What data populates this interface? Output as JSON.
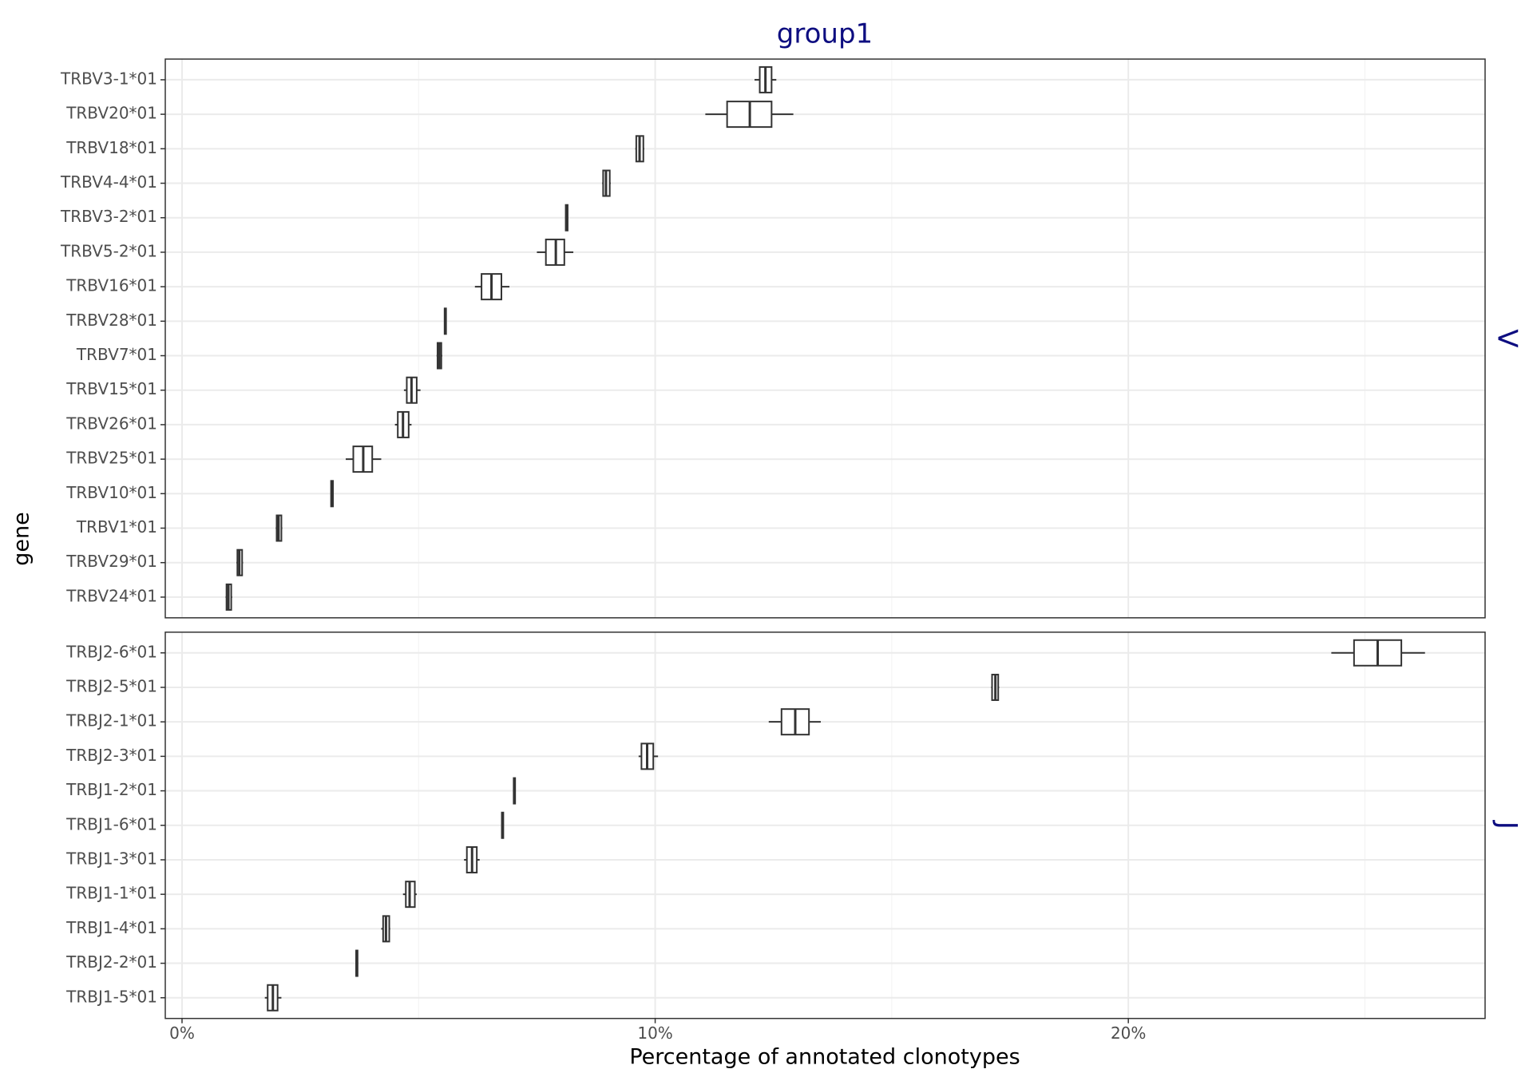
{
  "chart_data": {
    "type": "boxplot",
    "title": "group1",
    "xlabel": "Percentage of annotated clonotypes",
    "ylabel": "gene",
    "xlim": [
      -0.354,
      27.54
    ],
    "xticks": [
      {
        "value": 0,
        "label": "0%"
      },
      {
        "value": 10,
        "label": "10%"
      },
      {
        "value": 20,
        "label": "20%"
      }
    ],
    "minor_xticks": [
      5,
      15,
      25
    ],
    "grid": true,
    "title_color": "#0d0d80",
    "box_color": "#333333",
    "panels": [
      {
        "strip": "V",
        "categories": [
          "TRBV3-1*01",
          "TRBV20*01",
          "TRBV18*01",
          "TRBV4-4*01",
          "TRBV3-2*01",
          "TRBV5-2*01",
          "TRBV16*01",
          "TRBV28*01",
          "TRBV7*01",
          "TRBV15*01",
          "TRBV26*01",
          "TRBV25*01",
          "TRBV10*01",
          "TRBV1*01",
          "TRBV29*01",
          "TRBV24*01"
        ],
        "whisker_low": [
          12.1,
          11.06,
          9.58,
          8.88,
          8.1,
          7.5,
          6.19,
          5.54,
          5.38,
          4.69,
          4.5,
          3.46,
          3.14,
          1.98,
          1.15,
          0.92
        ],
        "q1": [
          12.21,
          11.52,
          9.6,
          8.9,
          8.11,
          7.69,
          6.33,
          5.55,
          5.4,
          4.75,
          4.56,
          3.62,
          3.15,
          2.0,
          1.17,
          0.94
        ],
        "median": [
          12.33,
          12.0,
          9.67,
          8.96,
          8.13,
          7.9,
          6.54,
          5.56,
          5.44,
          4.85,
          4.67,
          3.83,
          3.17,
          2.04,
          1.21,
          0.98
        ],
        "q3": [
          12.46,
          12.46,
          9.75,
          9.04,
          8.15,
          8.08,
          6.75,
          5.58,
          5.48,
          4.96,
          4.79,
          4.02,
          3.19,
          2.1,
          1.27,
          1.04
        ],
        "whisker_high": [
          12.56,
          12.92,
          9.77,
          9.06,
          8.16,
          8.27,
          6.92,
          5.59,
          5.5,
          5.04,
          4.85,
          4.21,
          3.2,
          2.12,
          1.29,
          1.06
        ]
      },
      {
        "strip": "J",
        "categories": [
          "TRBJ2-6*01",
          "TRBJ2-5*01",
          "TRBJ2-1*01",
          "TRBJ2-3*01",
          "TRBJ1-2*01",
          "TRBJ1-6*01",
          "TRBJ1-3*01",
          "TRBJ1-1*01",
          "TRBJ1-4*01",
          "TRBJ2-2*01",
          "TRBJ1-5*01"
        ],
        "whisker_low": [
          24.29,
          17.1,
          12.4,
          9.65,
          7.0,
          6.75,
          5.96,
          4.67,
          4.21,
          3.67,
          1.75
        ],
        "q1": [
          24.77,
          17.12,
          12.67,
          9.71,
          7.01,
          6.76,
          6.02,
          4.73,
          4.25,
          3.68,
          1.81
        ],
        "median": [
          25.27,
          17.19,
          12.96,
          9.83,
          7.02,
          6.77,
          6.13,
          4.81,
          4.31,
          3.69,
          1.92
        ],
        "q3": [
          25.77,
          17.25,
          13.25,
          9.96,
          7.04,
          6.79,
          6.23,
          4.92,
          4.38,
          3.71,
          2.02
        ],
        "whisker_high": [
          26.27,
          17.27,
          13.5,
          10.06,
          7.05,
          6.8,
          6.29,
          4.96,
          4.4,
          3.72,
          2.1
        ]
      }
    ]
  }
}
